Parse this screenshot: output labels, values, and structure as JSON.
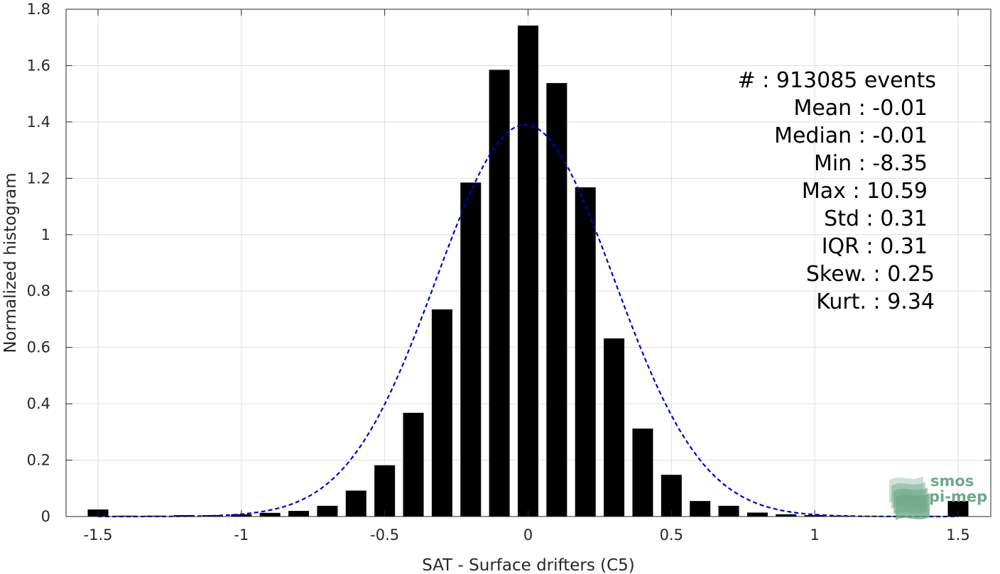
{
  "chart_data": {
    "type": "bar",
    "xlabel": "SAT - Surface drifters (C5)",
    "ylabel": "Normalized histogram",
    "xlim": [
      -1.5,
      1.5
    ],
    "ylim": [
      0,
      1.8
    ],
    "xticks": [
      -1.5,
      -1,
      -0.5,
      0,
      0.5,
      1,
      1.5
    ],
    "xtick_labels": [
      "-1.5",
      "-1",
      "-0.5",
      "0",
      "0.5",
      "1",
      "1.5"
    ],
    "yticks": [
      0,
      0.2,
      0.4,
      0.6,
      0.8,
      1,
      1.2,
      1.4,
      1.6,
      1.8
    ],
    "ytick_labels": [
      "0",
      "0.2",
      "0.4",
      "0.6",
      "0.8",
      "1",
      "1.2",
      "1.4",
      "1.6",
      "1.8"
    ],
    "grid": true,
    "bar_color": "#000000",
    "series": [
      {
        "x": [
          -1.5,
          -1.4,
          -1.3,
          -1.2,
          -1.1,
          -1.0,
          -0.9,
          -0.8,
          -0.7,
          -0.6,
          -0.5,
          -0.4,
          -0.3,
          -0.2,
          -0.1,
          0.0,
          0.1,
          0.2,
          0.3,
          0.4,
          0.5,
          0.6,
          0.7,
          0.8,
          0.9,
          1.0,
          1.1,
          1.2,
          1.3,
          1.4,
          1.5
        ],
        "values": [
          0.025,
          0.003,
          0.003,
          0.005,
          0.005,
          0.008,
          0.013,
          0.02,
          0.038,
          0.092,
          0.182,
          0.368,
          0.735,
          1.185,
          1.585,
          1.742,
          1.538,
          1.168,
          0.632,
          0.312,
          0.148,
          0.055,
          0.038,
          0.014,
          0.008,
          0.005,
          0.003,
          0.002,
          0.002,
          0.002,
          0.055
        ]
      }
    ],
    "fit_curve": {
      "style": "dashed",
      "color": "#0000cc",
      "mean": -0.01,
      "std": 0.31,
      "amplitude": 1.39
    },
    "stats": [
      {
        "label": "#",
        "sep": " : ",
        "value": "913085 events"
      },
      {
        "label": "Mean",
        "sep": " : ",
        "value": "-0.01"
      },
      {
        "label": "Median",
        "sep": " : ",
        "value": "-0.01"
      },
      {
        "label": "Min",
        "sep": " : ",
        "value": "-8.35"
      },
      {
        "label": "Max",
        "sep": " : ",
        "value": "10.59"
      },
      {
        "label": "Std",
        "sep": " : ",
        "value": "0.31"
      },
      {
        "label": "IQR",
        "sep": " : ",
        "value": "0.31"
      },
      {
        "label": "Skew.",
        "sep": " : ",
        "value": "0.25"
      },
      {
        "label": "Kurt.",
        "sep": " : ",
        "value": "9.34"
      }
    ]
  },
  "logo": {
    "line1": "smos",
    "line2": "pi-mep",
    "color": "#6fa98a"
  }
}
